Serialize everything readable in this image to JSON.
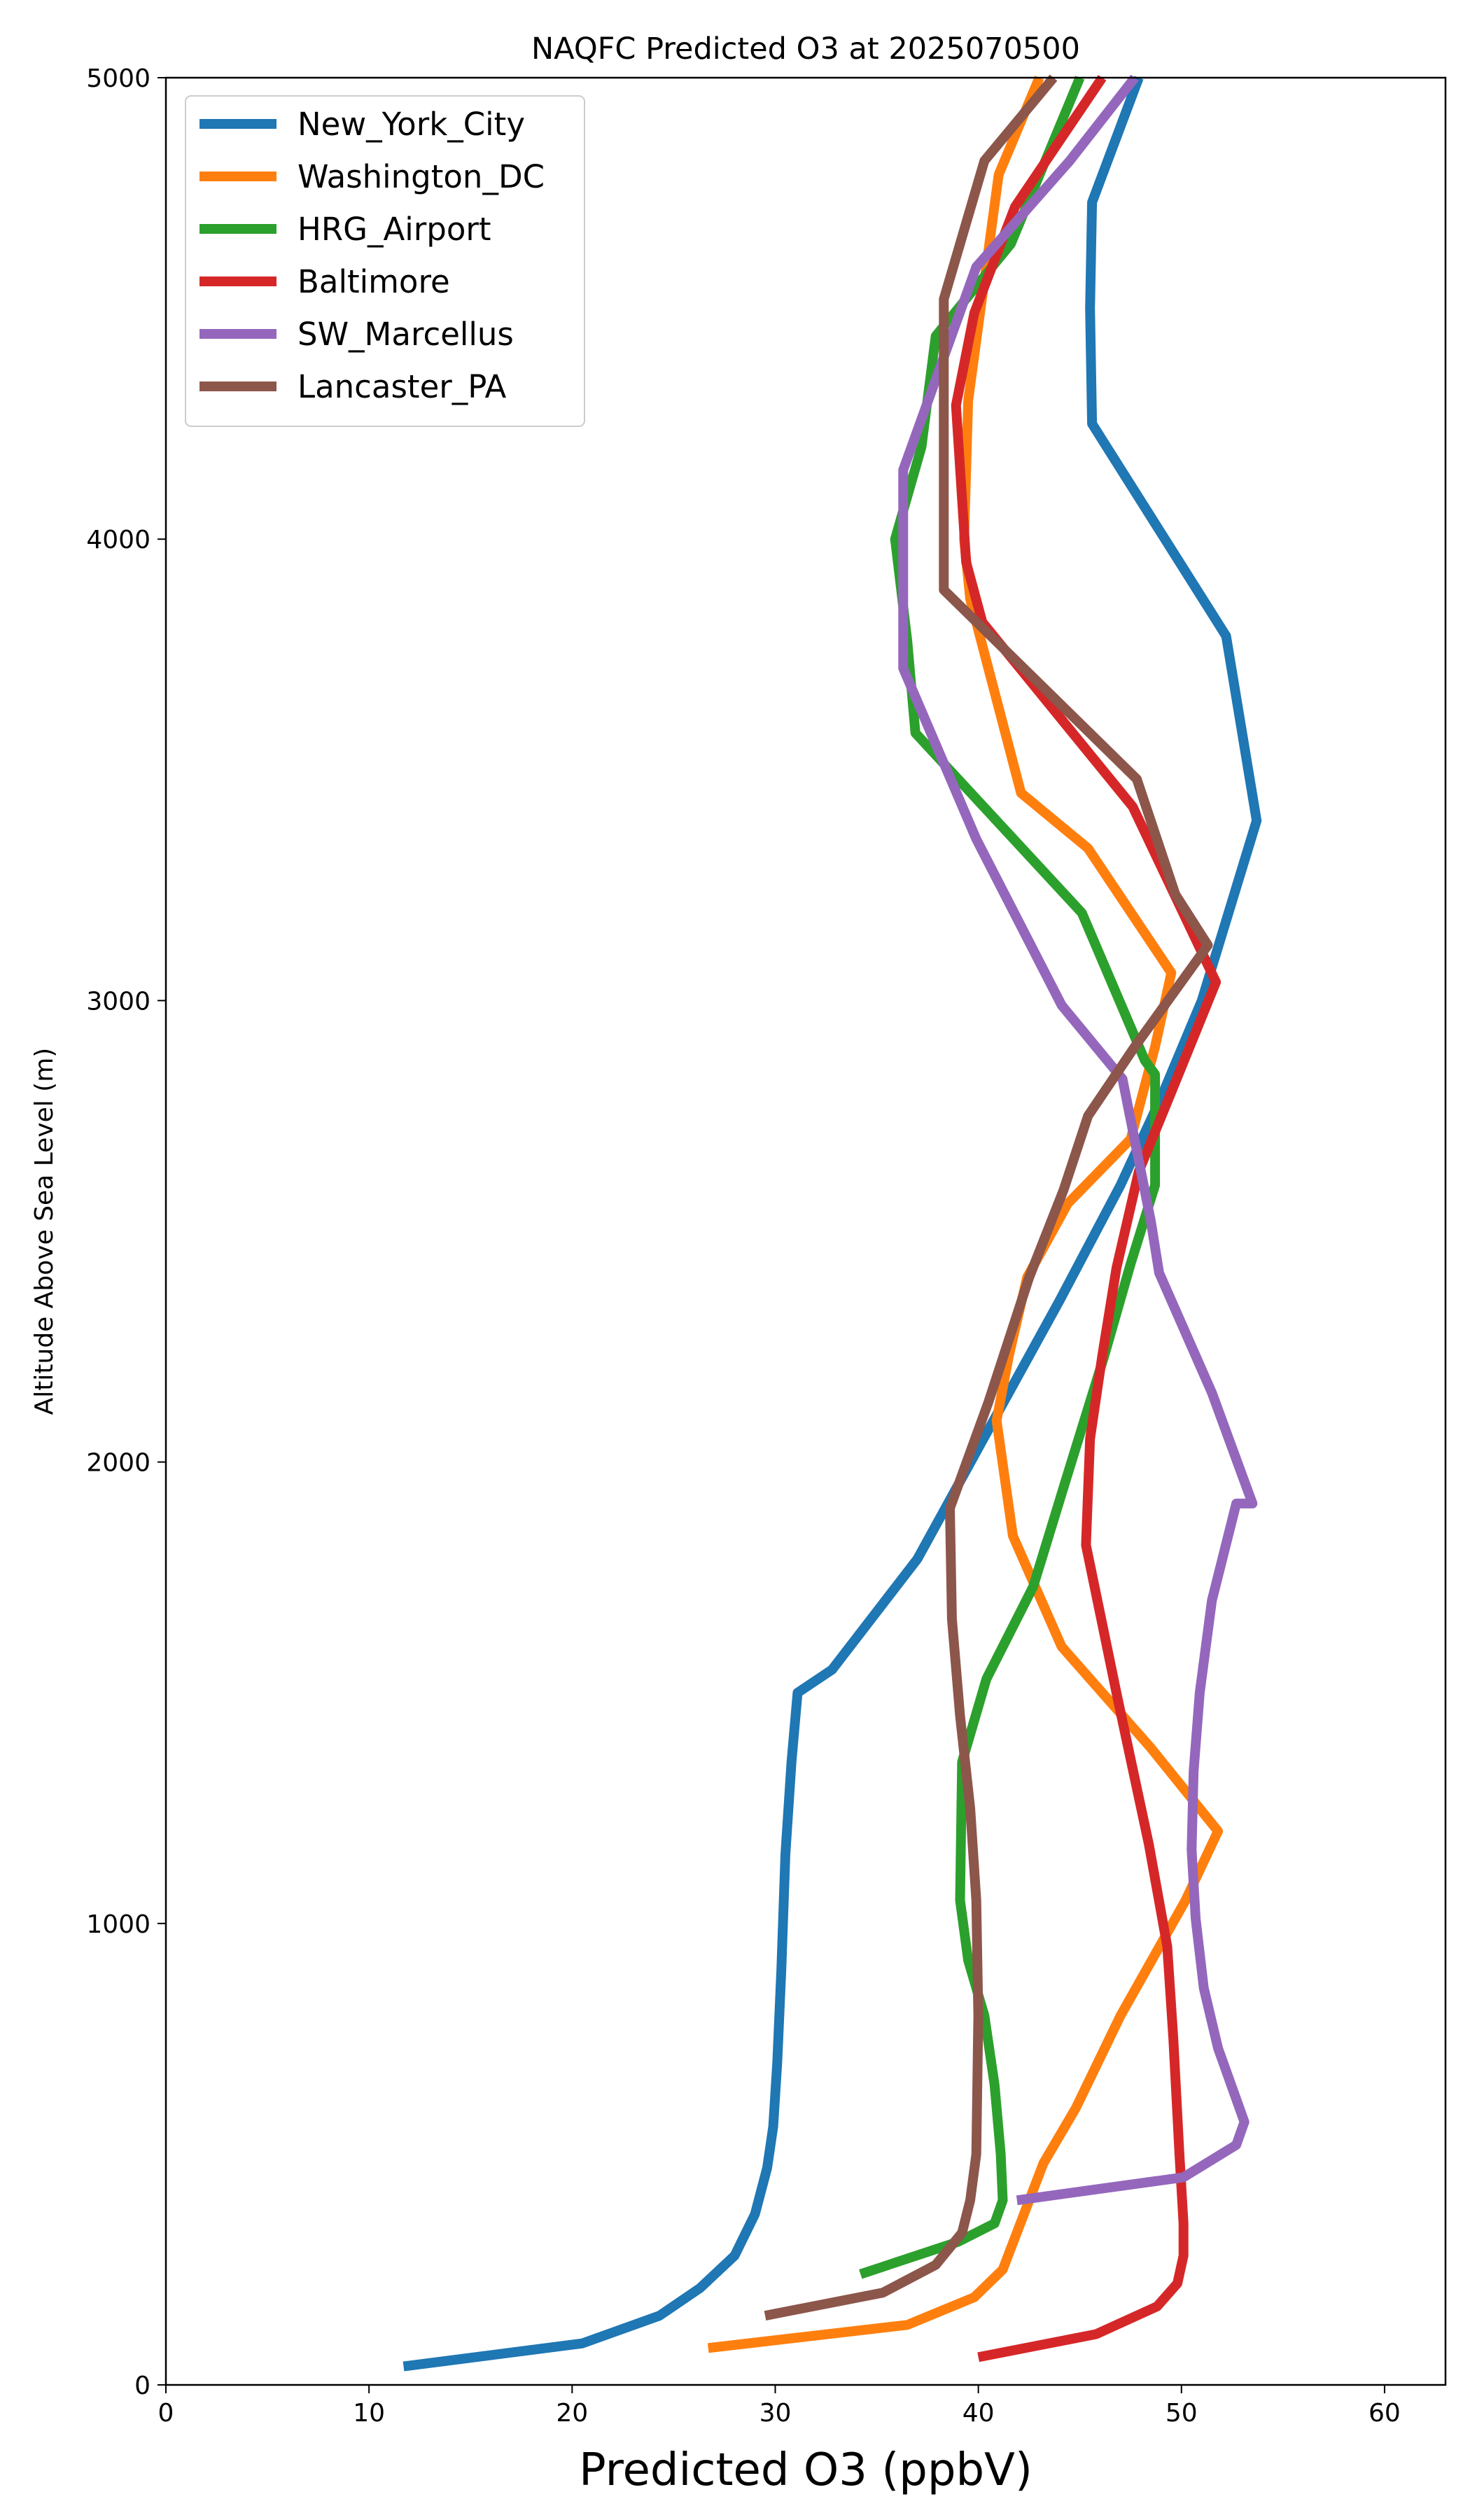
{
  "chart_data": {
    "type": "line",
    "title": "NAQFC Predicted O3 at 2025070500",
    "xlabel": "Predicted O3 (ppbV)",
    "ylabel": "Altitude Above Sea Level (m)",
    "xlim": [
      0,
      63
    ],
    "ylim": [
      0,
      5000
    ],
    "xticks": [
      "0",
      "10",
      "20",
      "30",
      "40",
      "50",
      "60"
    ],
    "yticks": [
      "0",
      "1000",
      "2000",
      "3000",
      "4000",
      "5000"
    ],
    "grid": false,
    "legend_position": "top-left",
    "series": [
      {
        "name": "New_York_City",
        "color": "#1f77b4",
        "x": [
          11.7,
          20.5,
          24.3,
          26.3,
          28.0,
          29.0,
          29.6,
          29.9,
          30.1,
          30.3,
          30.5,
          30.8,
          31.1,
          32.8,
          37.0,
          40.0,
          44.0,
          47.0,
          49.0,
          51.0,
          53.7,
          52.2,
          45.6,
          45.5,
          45.6,
          47.9
        ],
        "y": [
          40,
          90,
          150,
          210,
          280,
          370,
          470,
          560,
          700,
          900,
          1150,
          1350,
          1500,
          1550,
          1790,
          2030,
          2350,
          2600,
          2790,
          3000,
          3390,
          3790,
          4250,
          4500,
          4730,
          5000
        ]
      },
      {
        "name": "Washington_DC",
        "color": "#ff7f0e",
        "x": [
          26.7,
          36.5,
          39.8,
          41.2,
          43.2,
          44.8,
          47.0,
          50.2,
          51.8,
          48.5,
          44.1,
          41.7,
          40.9,
          41.5,
          42.4,
          44.4,
          47.5,
          48.7,
          49.5,
          45.4,
          42.1,
          39.6,
          39.3,
          39.5,
          41.0,
          43.0
        ],
        "y": [
          80,
          130,
          190,
          250,
          480,
          600,
          800,
          1050,
          1200,
          1380,
          1600,
          1840,
          2090,
          2230,
          2400,
          2560,
          2700,
          2900,
          3060,
          3330,
          3450,
          3870,
          4000,
          4300,
          4790,
          5000
        ]
      },
      {
        "name": "HRG_Airport",
        "color": "#2ca02c",
        "x": [
          34.2,
          39.0,
          40.8,
          41.2,
          41.1,
          40.8,
          40.3,
          39.5,
          39.1,
          39.2,
          40.4,
          42.7,
          44.3,
          46.2,
          47.5,
          48.7,
          48.7,
          48.2,
          45.1,
          36.9,
          36.5,
          35.9,
          37.2,
          37.9,
          41.6,
          45.0
        ],
        "y": [
          240,
          310,
          350,
          400,
          500,
          650,
          800,
          920,
          1050,
          1350,
          1530,
          1730,
          1960,
          2230,
          2430,
          2600,
          2840,
          2870,
          3190,
          3580,
          3780,
          4000,
          4200,
          4440,
          4640,
          5000
        ]
      },
      {
        "name": "Baltimore",
        "color": "#d62728",
        "x": [
          40.0,
          45.8,
          48.8,
          49.8,
          50.1,
          50.1,
          49.9,
          49.6,
          49.3,
          48.4,
          46.8,
          45.3,
          45.5,
          46.1,
          46.8,
          47.9,
          49.3,
          51.7,
          47.6,
          40.2,
          39.4,
          38.9,
          39.8,
          41.8,
          46.1
        ],
        "y": [
          60,
          110,
          170,
          220,
          280,
          350,
          500,
          750,
          950,
          1170,
          1500,
          1820,
          2050,
          2230,
          2420,
          2630,
          2780,
          3040,
          3420,
          3820,
          3950,
          4290,
          4490,
          4720,
          5000
        ]
      },
      {
        "name": "SW_Marcellus",
        "color": "#9467bd",
        "x": [
          41.9,
          50.1,
          52.7,
          53.1,
          51.8,
          51.1,
          50.7,
          50.5,
          50.6,
          50.9,
          51.5,
          52.7,
          53.5,
          51.5,
          48.9,
          48.5,
          47.1,
          44.1,
          39.9,
          36.3,
          36.3,
          36.3,
          39.9,
          44.5,
          47.7
        ],
        "y": [
          400,
          450,
          520,
          570,
          730,
          860,
          1010,
          1160,
          1330,
          1500,
          1700,
          1910,
          1910,
          2150,
          2410,
          2520,
          2830,
          2990,
          3350,
          3720,
          3920,
          4150,
          4590,
          4820,
          5000
        ]
      },
      {
        "name": "Lancaster_PA",
        "color": "#8c564b",
        "x": [
          29.5,
          35.3,
          37.9,
          39.2,
          39.6,
          39.9,
          40.0,
          39.9,
          39.6,
          39.1,
          38.7,
          38.6,
          40.5,
          42.5,
          44.2,
          45.4,
          47.7,
          51.3,
          49.7,
          47.8,
          38.3,
          38.3,
          38.3,
          40.3,
          43.7
        ],
        "y": [
          150,
          200,
          260,
          330,
          400,
          500,
          800,
          1050,
          1250,
          1450,
          1660,
          1900,
          2130,
          2400,
          2590,
          2750,
          2900,
          3120,
          3230,
          3480,
          3890,
          4090,
          4520,
          4820,
          5000
        ]
      }
    ]
  }
}
